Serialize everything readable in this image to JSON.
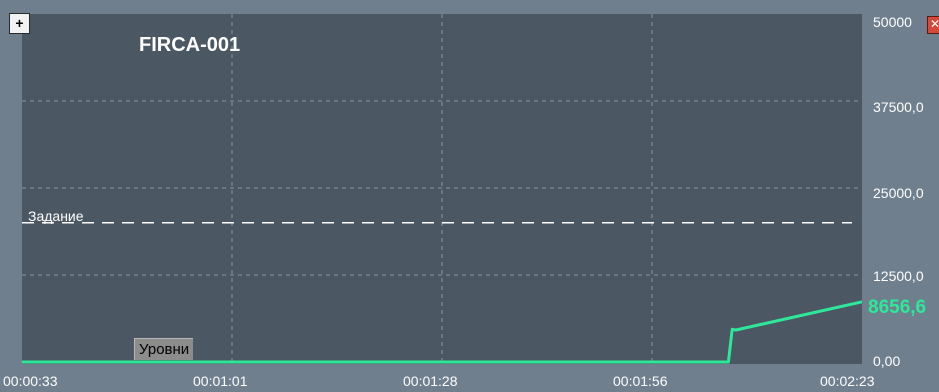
{
  "chart": {
    "title": "FIRCA-001",
    "setpoint_label": "Задание",
    "series_label": "Уровни",
    "current_value_label": "8656,6",
    "add_button_label": "+",
    "close_icon": "close-icon",
    "colors": {
      "plot_background": "#4b5763",
      "frame_background": "#6f7f8e",
      "grid": "#9fb0bf",
      "setpoint_line": "#ffffff",
      "series_line": "#2ee89a"
    },
    "y_tick_labels": [
      "50000",
      "37500,0",
      "25000,0",
      "12500,0",
      "0,00"
    ],
    "x_tick_labels": [
      "00:00:33",
      "00:01:01",
      "00:01:28",
      "00:01:56",
      "00:02:23"
    ]
  },
  "chart_data": {
    "type": "line",
    "title": "FIRCA-001",
    "xlabel": "",
    "ylabel": "",
    "x_tick_labels": [
      "00:00:33",
      "00:01:01",
      "00:01:28",
      "00:01:56",
      "00:02:23"
    ],
    "x_range_seconds": [
      33,
      143
    ],
    "ylim": [
      0,
      50000
    ],
    "grid": true,
    "setpoint": {
      "name": "Задание",
      "value": 20000
    },
    "series": [
      {
        "name": "Уровни",
        "x_seconds": [
          33,
          125.5,
          126,
          126.5,
          143
        ],
        "values": [
          0,
          0,
          4700,
          4600,
          8656.6
        ]
      }
    ],
    "current_value": 8656.6
  }
}
